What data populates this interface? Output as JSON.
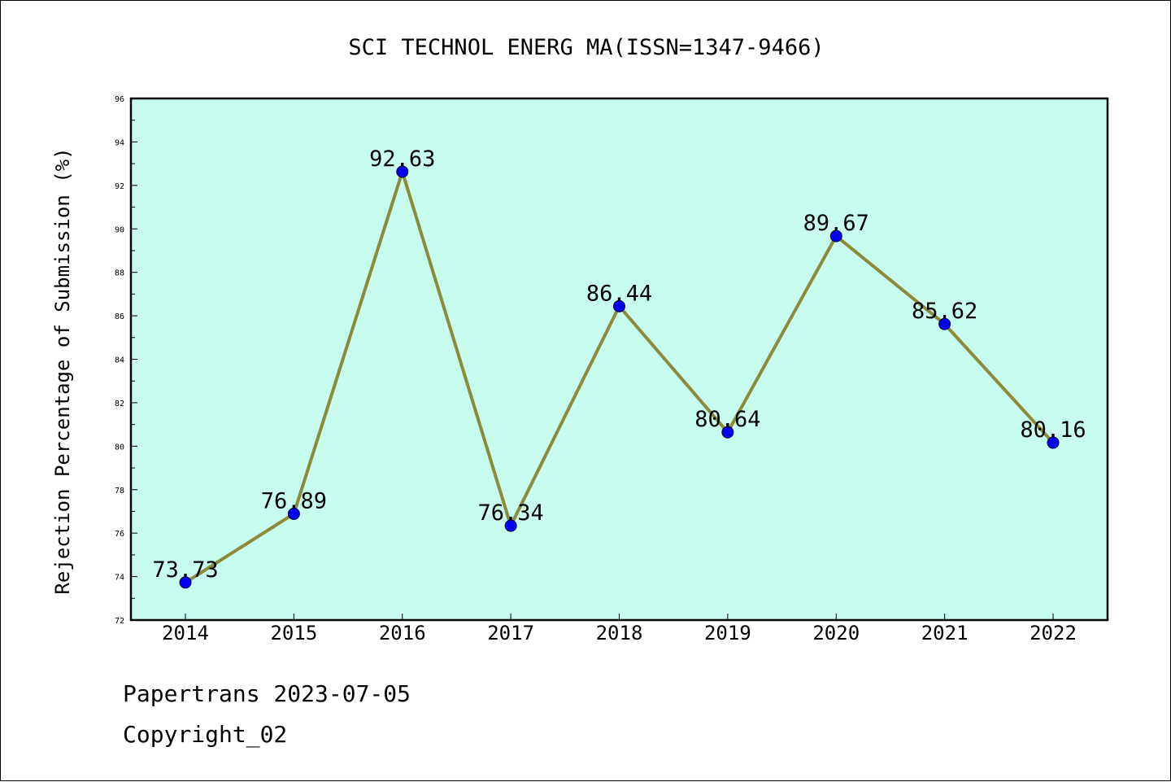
{
  "chart_data": {
    "type": "line",
    "title": "SCI TECHNOL ENERG MA(ISSN=1347-9466)",
    "xlabel": "",
    "ylabel": "Rejection Percentage of Submission (%)",
    "categories": [
      "2014",
      "2015",
      "2016",
      "2017",
      "2018",
      "2019",
      "2020",
      "2021",
      "2022"
    ],
    "series": [
      {
        "values": [
          73.73,
          76.89,
          92.63,
          76.34,
          86.44,
          80.64,
          89.67,
          85.62,
          80.16
        ]
      }
    ],
    "data_labels": [
      "73.73",
      "76.89",
      "92.63",
      "76.34",
      "86.44",
      "80.64",
      "89.67",
      "85.62",
      "80.16"
    ],
    "ylim": [
      72,
      96
    ],
    "yticks": [
      72,
      74,
      76,
      78,
      80,
      82,
      84,
      86,
      88,
      90,
      92,
      94,
      96
    ],
    "grid": false,
    "colors": {
      "plot_background": "#c8fcee",
      "line": "#8b8c3a",
      "marker": "#0000ee"
    }
  },
  "footer": {
    "line1": "Papertrans 2023-07-05",
    "line2": "Copyright_02"
  }
}
